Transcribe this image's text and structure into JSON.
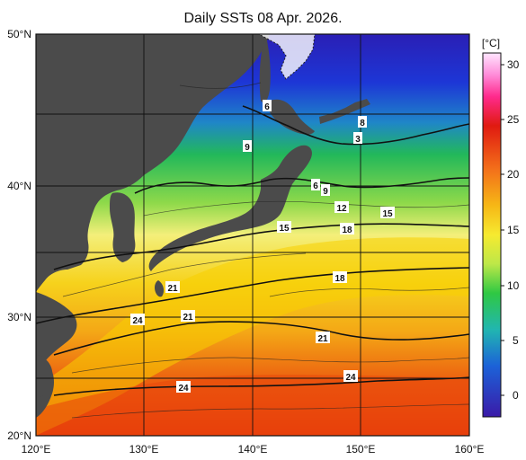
{
  "title": "Daily SSTs 08 Apr. 2026.",
  "colorbar": {
    "unit_label": "[°C]",
    "ticks": [
      "30",
      "25",
      "20",
      "15",
      "10",
      "5",
      "0"
    ]
  },
  "lat_ticks": [
    "50°N",
    "40°N",
    "30°N",
    "20°N"
  ],
  "lon_ticks": [
    "120°E",
    "130°E",
    "140°E",
    "150°E",
    "160°E"
  ],
  "contour_labels": [
    "6",
    "9",
    "8",
    "3",
    "6",
    "9",
    "12",
    "15",
    "15",
    "18",
    "18",
    "21",
    "21",
    "24",
    "21",
    "24",
    "24"
  ],
  "colors": {
    "land": "#4b4b4b",
    "cold": "#1a2ccc",
    "mid": "#27b83f",
    "warm": "#f3c200",
    "hot": "#e8300a"
  }
}
